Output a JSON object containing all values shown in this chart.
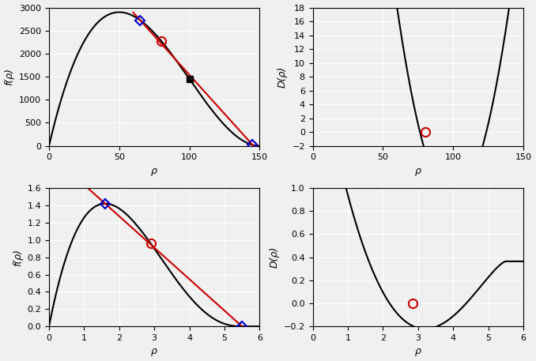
{
  "top_left": {
    "blue_diamond_1": [
      65,
      2700
    ],
    "blue_diamond_2": [
      145,
      20
    ],
    "red_circle": [
      80,
      2000
    ],
    "black_square": [
      100,
      1470
    ],
    "xlim": [
      0,
      150
    ],
    "ylim": [
      0,
      3000
    ],
    "xlabel": "ρ",
    "ylabel": "f(ρ)",
    "xticks": [
      0,
      50,
      100,
      150
    ],
    "yticks": [
      0,
      500,
      1000,
      1500,
      2000,
      2500,
      3000
    ],
    "rho_l": 65.0,
    "rho_r": 145.0
  },
  "top_right": {
    "red_circle": [
      80,
      0.0
    ],
    "xlim": [
      0,
      150
    ],
    "ylim": [
      -2,
      18
    ],
    "xlabel": "ρ",
    "ylabel": "D(ρ)",
    "xticks": [
      0,
      50,
      100,
      150
    ],
    "yticks": [
      -2,
      0,
      2,
      4,
      6,
      8,
      10,
      12,
      14,
      16,
      18
    ]
  },
  "bottom_left": {
    "blue_diamond_1": [
      1.6,
      1.42
    ],
    "blue_diamond_2": [
      5.5,
      0.01
    ],
    "red_circle": [
      2.9,
      1.0
    ],
    "xlim": [
      0,
      6
    ],
    "ylim": [
      0,
      1.6
    ],
    "xlabel": "ρ",
    "ylabel": "f(ρ)",
    "xticks": [
      0,
      1,
      2,
      3,
      4,
      5,
      6
    ],
    "yticks": [
      0,
      0.2,
      0.4,
      0.6,
      0.8,
      1.0,
      1.2,
      1.4,
      1.6
    ],
    "rho_l": 1.6,
    "rho_r": 5.5
  },
  "bottom_right": {
    "red_circle": [
      2.85,
      0.0
    ],
    "xlim": [
      0,
      6
    ],
    "ylim": [
      -0.2,
      1.0
    ],
    "xlabel": "ρ",
    "ylabel": "D(ρ)",
    "xticks": [
      0,
      1,
      2,
      3,
      4,
      5,
      6
    ],
    "yticks": [
      -0.2,
      0,
      0.2,
      0.4,
      0.6,
      0.8,
      1.0
    ]
  },
  "bg_color": "#f0f0f0",
  "line_color": "#000000",
  "red_color": "#cc0000",
  "blue_color": "#0000cc"
}
